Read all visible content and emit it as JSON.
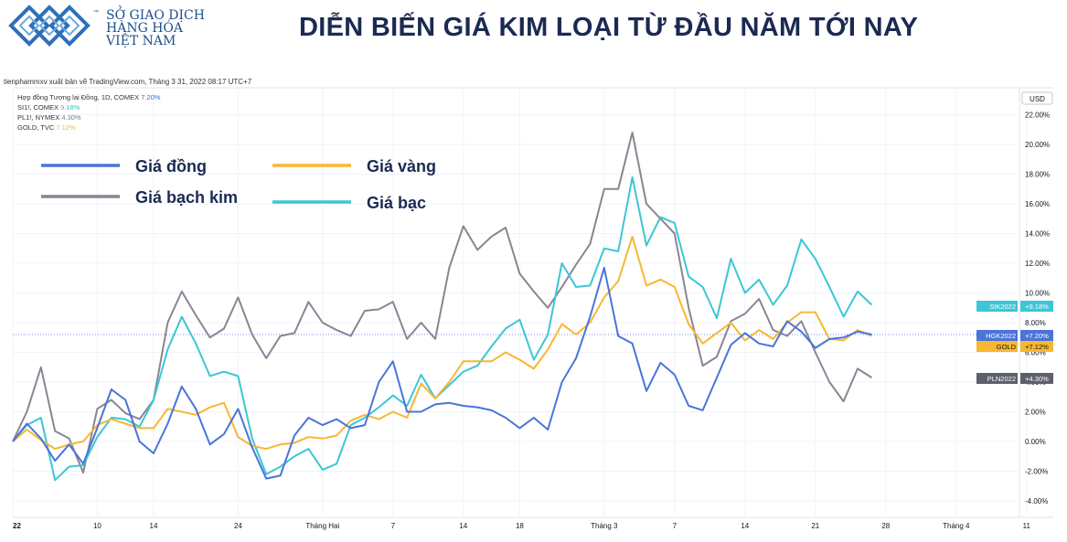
{
  "header": {
    "logo_lines": [
      "SỞ GIAO DỊCH",
      "HÀNG HÓA",
      "VIỆT NAM"
    ],
    "logo_tm": "™",
    "title": "DIỄN BIẾN GIÁ KIM LOẠI TỪ ĐẦU NĂM TỚI NAY",
    "attribution": "tienphammxv xuất bản vẽ TradingView.com, Tháng 3 31, 2022 08:17 UTC+7"
  },
  "symbol_info": [
    {
      "name": "Hợp đồng Tương lai Đồng, 1D, COMEX",
      "value": "7.20%",
      "color": "#2a6fdb"
    },
    {
      "name": "SI1!, COMEX",
      "value": "9.18%",
      "color": "#26c6da"
    },
    {
      "name": "PL1!, NYMEX",
      "value": "4.30%",
      "color": "#787b86"
    },
    {
      "name": "GOLD, TVC",
      "value": "7.12%",
      "color": "#f7b731"
    }
  ],
  "currency_label": "USD",
  "chart_data": {
    "type": "line",
    "ylim": [
      -5,
      23
    ],
    "y_ticks": [
      22,
      20,
      18,
      16,
      14,
      12,
      10,
      8,
      6,
      4,
      2,
      0,
      -2,
      -4
    ],
    "y_tick_labels": [
      "22.00%",
      "20.00%",
      "18.00%",
      "16.00%",
      "14.00%",
      "12.00%",
      "10.00%",
      "8.00%",
      "6.00%",
      "4.00%",
      "2.00%",
      "0.00%",
      "-2.00%",
      "-4.00%"
    ],
    "x_ticks": [
      {
        "label": "22",
        "i": 0,
        "bold": true
      },
      {
        "label": "10",
        "i": 6
      },
      {
        "label": "14",
        "i": 10
      },
      {
        "label": "24",
        "i": 16
      },
      {
        "label": "Tháng Hai",
        "i": 22
      },
      {
        "label": "7",
        "i": 27
      },
      {
        "label": "14",
        "i": 32
      },
      {
        "label": "18",
        "i": 36
      },
      {
        "label": "Tháng 3",
        "i": 42
      },
      {
        "label": "7",
        "i": 47
      },
      {
        "label": "14",
        "i": 52
      },
      {
        "label": "21",
        "i": 57
      },
      {
        "label": "28",
        "i": 62
      },
      {
        "label": "Tháng 4",
        "i": 67
      },
      {
        "label": "11",
        "i": 72
      }
    ],
    "x_count": 76,
    "legend": [
      {
        "label": "Giá đồng",
        "color": "#4a74d9"
      },
      {
        "label": "Giá vàng",
        "color": "#f7b731"
      },
      {
        "label": "Giá bạch kim",
        "color": "#8a8591"
      },
      {
        "label": "Giá bạc",
        "color": "#3cc6d6"
      }
    ],
    "series": [
      {
        "name": "Giá bạch kim",
        "color": "#8a8591",
        "tag": "PLN2022",
        "tag_value": "+4.30%",
        "values": [
          0.0,
          2.0,
          5.0,
          0.7,
          0.2,
          -2.1,
          2.2,
          2.8,
          1.9,
          1.5,
          2.8,
          8.0,
          10.1,
          8.5,
          7.0,
          7.6,
          9.7,
          7.2,
          5.6,
          7.1,
          7.3,
          9.4,
          8.0,
          7.5,
          7.1,
          8.8,
          8.9,
          9.4,
          6.9,
          8.0,
          6.9,
          11.7,
          14.5,
          12.9,
          13.8,
          14.4,
          11.3,
          10.1,
          9.0,
          10.4,
          11.9,
          13.3,
          17.0,
          17.0,
          20.8,
          16.0,
          15.0,
          14.0,
          9.0,
          5.1,
          5.7,
          8.1,
          8.6,
          9.6,
          7.5,
          7.1,
          8.1,
          6.0,
          4.0,
          2.7,
          4.9,
          4.3
        ]
      },
      {
        "name": "Giá bạc",
        "color": "#3cc6d6",
        "tag": "SIK2022",
        "tag_value": "+9.18%",
        "values": [
          0.0,
          1.1,
          1.6,
          -2.6,
          -1.7,
          -1.6,
          0.3,
          1.6,
          1.5,
          1.0,
          2.8,
          6.2,
          8.4,
          6.6,
          4.4,
          4.7,
          4.4,
          0.2,
          -2.2,
          -1.7,
          -1.0,
          -0.5,
          -1.9,
          -1.5,
          1.1,
          1.6,
          2.3,
          3.1,
          2.4,
          4.5,
          2.9,
          3.8,
          4.7,
          5.1,
          6.4,
          7.6,
          8.2,
          5.5,
          7.2,
          12.0,
          10.4,
          10.5,
          13.0,
          12.8,
          17.8,
          13.2,
          15.1,
          14.7,
          11.1,
          10.4,
          8.3,
          12.3,
          10.0,
          10.9,
          9.2,
          10.5,
          13.6,
          12.3,
          10.4,
          8.4,
          10.1,
          9.2
        ]
      },
      {
        "name": "Giá vàng",
        "color": "#f7b731",
        "tag": "GOLD",
        "tag_value": "+7.12%",
        "values": [
          0.0,
          0.8,
          0.1,
          -0.5,
          -0.2,
          0.0,
          1.1,
          1.5,
          1.2,
          0.9,
          0.9,
          2.2,
          2.0,
          1.8,
          2.3,
          2.6,
          0.3,
          -0.3,
          -0.5,
          -0.2,
          -0.1,
          0.3,
          0.2,
          0.4,
          1.4,
          1.8,
          1.5,
          2.0,
          1.6,
          3.9,
          2.9,
          4.0,
          5.4,
          5.4,
          5.4,
          6.0,
          5.5,
          4.9,
          6.2,
          7.9,
          7.2,
          8.0,
          9.7,
          10.8,
          13.8,
          10.5,
          10.9,
          10.4,
          7.9,
          6.6,
          7.3,
          8.0,
          6.8,
          7.5,
          6.9,
          8.0,
          8.7,
          8.7,
          6.9,
          6.8,
          7.5,
          7.1
        ]
      },
      {
        "name": "Giá đồng",
        "color": "#4a74d9",
        "tag": "HGK2022",
        "tag_value": "+7.20%",
        "values": [
          0.0,
          1.2,
          0.2,
          -1.3,
          -0.2,
          -1.5,
          0.9,
          3.5,
          2.8,
          0.0,
          -0.8,
          1.2,
          3.7,
          2.2,
          -0.2,
          0.5,
          2.2,
          -0.4,
          -2.5,
          -2.3,
          0.4,
          1.6,
          1.1,
          1.5,
          0.9,
          1.1,
          4.0,
          5.4,
          2.0,
          2.0,
          2.5,
          2.6,
          2.4,
          2.3,
          2.1,
          1.6,
          0.9,
          1.6,
          0.8,
          4.0,
          5.6,
          8.4,
          11.7,
          7.1,
          6.6,
          3.4,
          5.3,
          4.5,
          2.4,
          2.1,
          4.3,
          6.5,
          7.3,
          6.6,
          6.4,
          8.1,
          7.4,
          6.3,
          6.9,
          7.0,
          7.4,
          7.2
        ]
      }
    ]
  }
}
